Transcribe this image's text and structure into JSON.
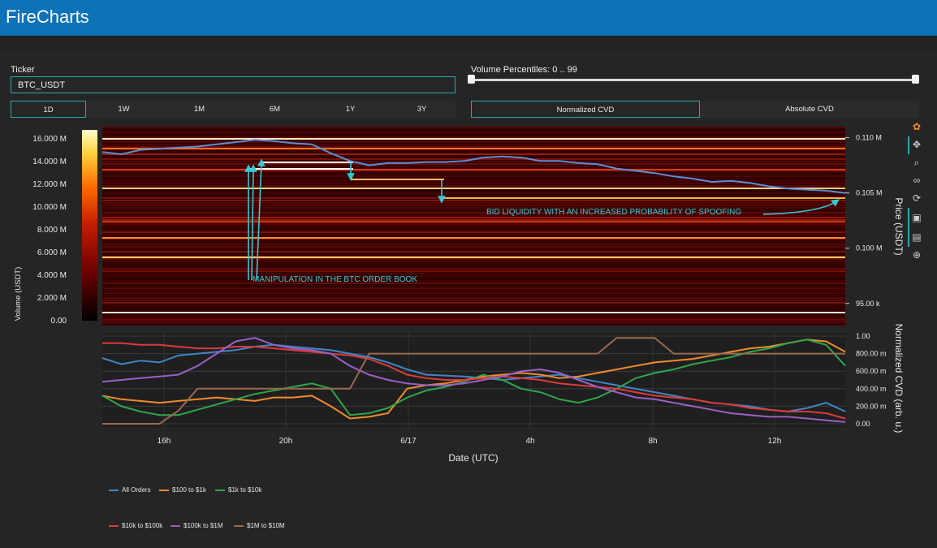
{
  "app": {
    "title": "FireCharts"
  },
  "controls": {
    "ticker_label": "Ticker",
    "ticker_value": "BTC_USDT",
    "timeframes": [
      "1D",
      "1W",
      "1M",
      "6M",
      "1Y",
      "3Y"
    ],
    "active_timeframe": "1D",
    "volume_percentiles_label": "Volume Percentiles: 0 .. 99",
    "volume_percentile_min": 0,
    "volume_percentile_max": 99,
    "cvd_modes": [
      "Normalized CVD",
      "Absolute CVD"
    ],
    "active_cvd_mode": "Normalized CVD"
  },
  "modebar": {
    "icons": [
      "plotly-logo-icon",
      "pan-icon",
      "zoom-icon",
      "lasso-icon",
      "reset-axes-icon",
      "download-icon",
      "hover-compare-icon",
      "spike-lines-icon"
    ]
  },
  "chart_data": [
    {
      "type": "heatmap",
      "title": "",
      "xlabel": "",
      "ylabel": "Price (USDT)",
      "yticks": [
        "0.110 M",
        "0.105 M",
        "0.100 M",
        "95.00 k"
      ],
      "ylim": [
        93000,
        111000
      ],
      "colorbar": {
        "label": "Volume (USDT)",
        "ticks": [
          "16.000 M",
          "14.000 M",
          "12.000 M",
          "10.000 M",
          "8.000 M",
          "6.000 M",
          "4.000 M",
          "2.000 M",
          "0.00"
        ],
        "range": [
          0,
          16800000
        ],
        "colors": [
          "#000000",
          "#6a0000",
          "#c21c00",
          "#ff6a00",
          "#ffd23c",
          "#ffffcf"
        ]
      },
      "price_line_color": "#5b8fd6",
      "price_series": [
        108700,
        108500,
        108900,
        109000,
        109100,
        109200,
        109400,
        109600,
        109800,
        109700,
        109500,
        109400,
        108600,
        107900,
        107500,
        107700,
        107700,
        107800,
        107800,
        107900,
        108200,
        108300,
        108200,
        107900,
        107900,
        107700,
        107600,
        107200,
        107000,
        106800,
        106500,
        106300,
        106000,
        106100,
        105900,
        105600,
        105400,
        105300,
        105200,
        105000
      ],
      "annotations": [
        {
          "text": "MANIPULATION IN THE BTC ORDER BOOK",
          "color": "#36c9d6"
        },
        {
          "text": "BID LIQUIDITY WITH AN INCREASED PROBABILITY OF SPOOFING",
          "color": "#36c9d6"
        }
      ]
    },
    {
      "type": "line",
      "title": "",
      "xlabel": "Date (UTC)",
      "ylabel": "Normalized CVD (arb. u.)",
      "xticks": [
        "16h",
        "20h",
        "6/17",
        "4h",
        "8h",
        "12h"
      ],
      "yticks": [
        "1.00",
        "800.00 m",
        "600.00 m",
        "400.00 m",
        "200.00 m",
        "0.00"
      ],
      "ylim": [
        0,
        1
      ],
      "series": [
        {
          "name": "All Orders",
          "color": "#3f86c8",
          "values": [
            0.75,
            0.68,
            0.72,
            0.7,
            0.78,
            0.8,
            0.82,
            0.84,
            0.88,
            0.9,
            0.88,
            0.86,
            0.84,
            0.8,
            0.76,
            0.7,
            0.62,
            0.56,
            0.55,
            0.54,
            0.52,
            0.5,
            0.52,
            0.54,
            0.56,
            0.52,
            0.48,
            0.44,
            0.4,
            0.36,
            0.32,
            0.28,
            0.24,
            0.22,
            0.2,
            0.16,
            0.14,
            0.18,
            0.24,
            0.14
          ]
        },
        {
          "name": "$100 to $1k",
          "color": "#f28a2e",
          "values": [
            0.32,
            0.28,
            0.26,
            0.24,
            0.26,
            0.28,
            0.3,
            0.28,
            0.26,
            0.3,
            0.3,
            0.32,
            0.2,
            0.06,
            0.08,
            0.12,
            0.4,
            0.44,
            0.46,
            0.5,
            0.54,
            0.56,
            0.58,
            0.56,
            0.52,
            0.54,
            0.58,
            0.62,
            0.66,
            0.7,
            0.72,
            0.74,
            0.78,
            0.82,
            0.86,
            0.88,
            0.92,
            0.96,
            0.94,
            0.82
          ]
        },
        {
          "name": "$1k to $10k",
          "color": "#2ea64a",
          "values": [
            0.32,
            0.2,
            0.14,
            0.1,
            0.1,
            0.16,
            0.22,
            0.28,
            0.34,
            0.38,
            0.42,
            0.46,
            0.4,
            0.1,
            0.12,
            0.18,
            0.3,
            0.38,
            0.42,
            0.48,
            0.56,
            0.5,
            0.4,
            0.36,
            0.28,
            0.24,
            0.3,
            0.4,
            0.52,
            0.58,
            0.62,
            0.68,
            0.72,
            0.76,
            0.82,
            0.86,
            0.92,
            0.96,
            0.9,
            0.66
          ]
        },
        {
          "name": "$10k to $100k",
          "color": "#e03a3a",
          "values": [
            0.92,
            0.92,
            0.9,
            0.9,
            0.88,
            0.86,
            0.86,
            0.88,
            0.88,
            0.86,
            0.84,
            0.82,
            0.8,
            0.78,
            0.74,
            0.66,
            0.56,
            0.52,
            0.5,
            0.5,
            0.52,
            0.54,
            0.52,
            0.5,
            0.46,
            0.44,
            0.42,
            0.4,
            0.36,
            0.32,
            0.3,
            0.28,
            0.24,
            0.22,
            0.18,
            0.16,
            0.14,
            0.14,
            0.12,
            0.06
          ]
        },
        {
          "name": "$100k to $1M",
          "color": "#9b5fc6",
          "values": [
            0.48,
            0.5,
            0.52,
            0.54,
            0.56,
            0.66,
            0.8,
            0.94,
            0.98,
            0.9,
            0.86,
            0.84,
            0.8,
            0.66,
            0.56,
            0.5,
            0.46,
            0.44,
            0.44,
            0.46,
            0.5,
            0.54,
            0.6,
            0.62,
            0.58,
            0.5,
            0.42,
            0.36,
            0.3,
            0.28,
            0.24,
            0.2,
            0.16,
            0.12,
            0.1,
            0.08,
            0.08,
            0.06,
            0.04,
            0.02
          ]
        },
        {
          "name": "$1M to $10M",
          "color": "#9a6a50",
          "values": [
            0.0,
            0.0,
            0.0,
            0.0,
            0.15,
            0.4,
            0.4,
            0.4,
            0.4,
            0.4,
            0.4,
            0.4,
            0.4,
            0.4,
            0.8,
            0.8,
            0.8,
            0.8,
            0.8,
            0.8,
            0.8,
            0.8,
            0.8,
            0.8,
            0.8,
            0.8,
            0.8,
            0.98,
            0.98,
            0.98,
            0.8,
            0.8,
            0.8,
            0.8,
            0.8,
            0.8,
            0.8,
            0.8,
            0.8,
            0.8
          ]
        }
      ]
    }
  ]
}
